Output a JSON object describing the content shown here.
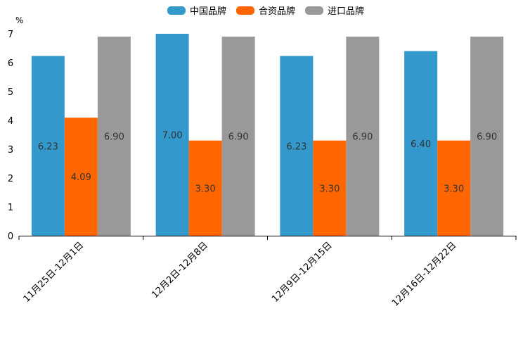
{
  "chart_data": {
    "type": "bar",
    "title": "",
    "ylabel": "%",
    "xlabel": "",
    "ylim": [
      0,
      7
    ],
    "yticks": [
      0,
      1,
      2,
      3,
      4,
      5,
      6,
      7
    ],
    "grid": false,
    "legend_position": "top-center",
    "categories": [
      "11月25日-12月1日",
      "12月2日-12月8日",
      "12月9日-12月15日",
      "12月16日-12月22日"
    ],
    "series": [
      {
        "name": "中国品牌",
        "color": "#3399cc",
        "values": [
          6.23,
          7.0,
          6.23,
          6.4
        ],
        "labels": [
          "6.23",
          "7.00",
          "6.23",
          "6.40"
        ]
      },
      {
        "name": "合资品牌",
        "color": "#ff6600",
        "values": [
          4.09,
          3.3,
          3.3,
          3.3
        ],
        "labels": [
          "4.09",
          "3.30",
          "3.30",
          "3.30"
        ]
      },
      {
        "name": "进口品牌",
        "color": "#999999",
        "values": [
          6.9,
          6.9,
          6.9,
          6.9
        ],
        "labels": [
          "6.90",
          "6.90",
          "6.90",
          "6.90"
        ]
      }
    ]
  }
}
